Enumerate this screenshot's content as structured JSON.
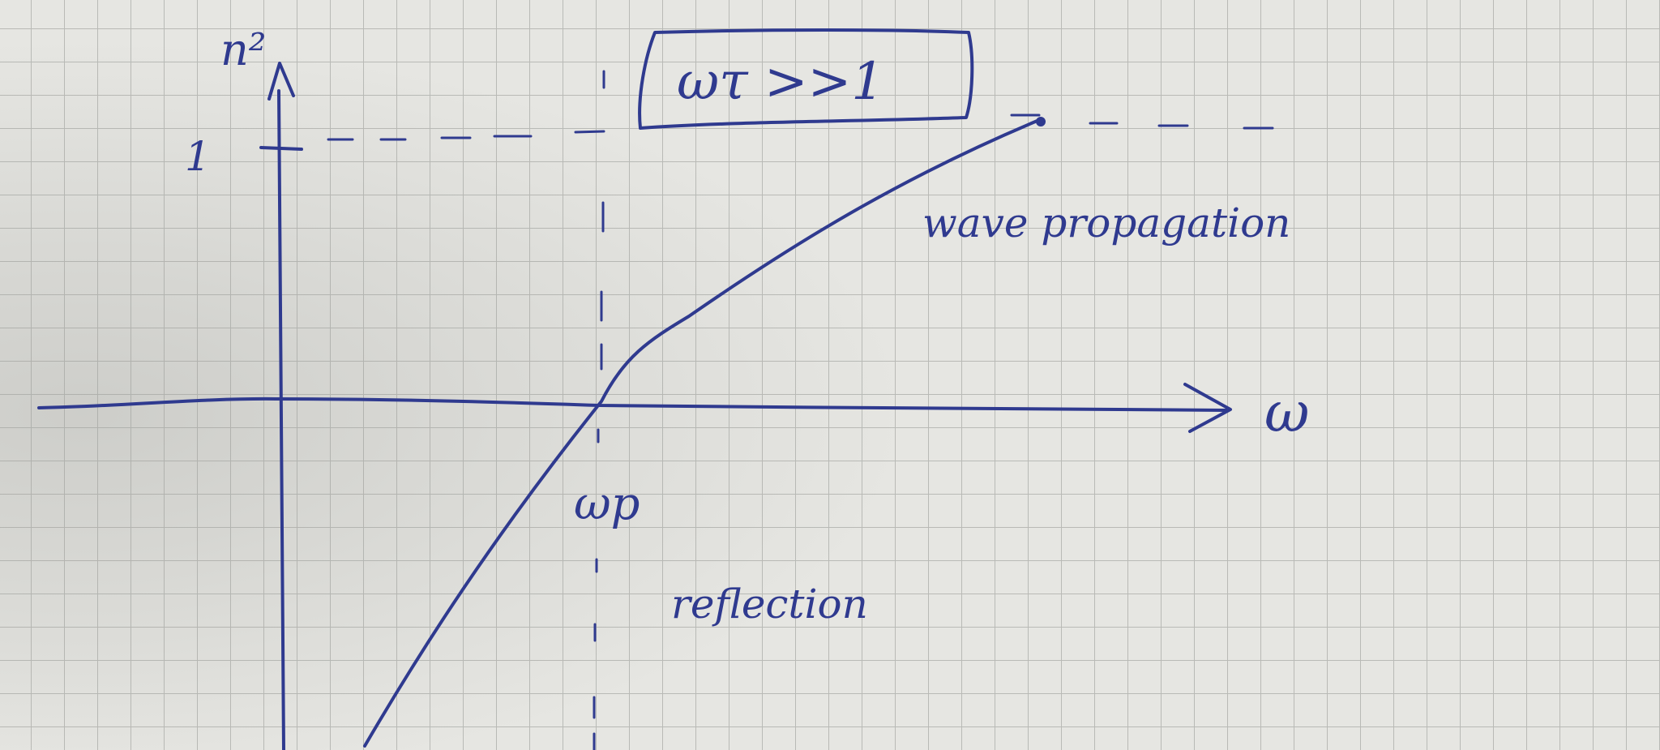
{
  "diagram": {
    "box_label": "ωτ >>1",
    "y_axis_label": "n²",
    "y_tick_label": "1",
    "x_axis_label": "ω",
    "x_marker_label": "ωp",
    "region_above": "wave propagation",
    "region_below": "reflection",
    "ink_color": "#2f3a8f",
    "paper_color": "#e6e6e2",
    "grid_color": "#b9bab6"
  }
}
